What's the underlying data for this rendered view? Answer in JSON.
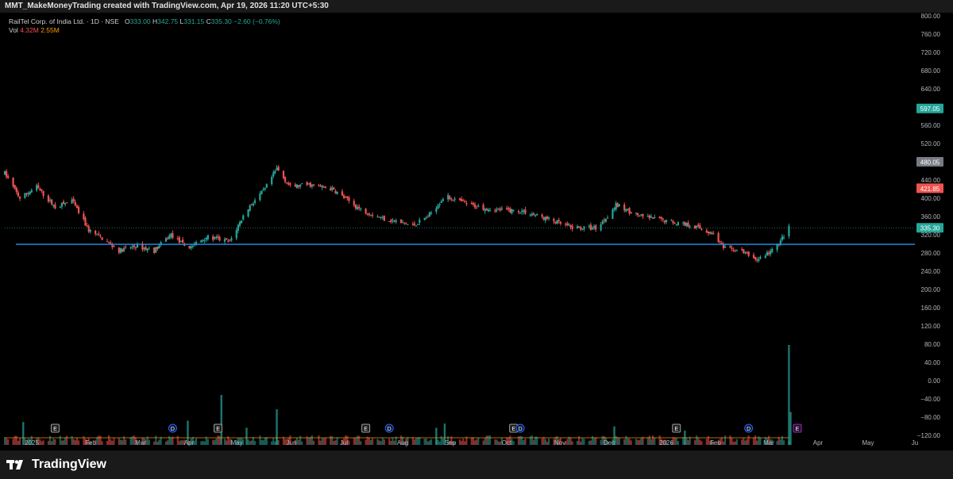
{
  "header": {
    "created_by": "MMT_MakeMoneyTrading created with TradingView.com, Apr 19, 2026 11:20 UTC+5:30"
  },
  "legend": {
    "symbol": "RailTel Corp. of India Ltd. · 1D · NSE",
    "open_label": "O",
    "open": "333.00",
    "high_label": "H",
    "high": "342.75",
    "low_label": "L",
    "low": "331.15",
    "close_label": "C",
    "close": "335.30",
    "change": "−2.60 (−0.76%)",
    "vol_label": "Vol",
    "vol": "4.32M",
    "vol_ma": "2.55M"
  },
  "brand": {
    "name": "TradingView"
  },
  "colors": {
    "up": "#26a69a",
    "down": "#ef5350",
    "hline": "#2196f3",
    "price_badge": "#26a69a",
    "badge_480": "#787b86",
    "badge_421": "#ef5350",
    "volume_ma": "#ff9800",
    "event_dividend": "#2962ff",
    "event_earnings": "#9c27b0"
  },
  "chart_data": {
    "type": "candlestick",
    "title": "",
    "y_axis": {
      "ticks": [
        "800.00",
        "760.00",
        "720.00",
        "680.00",
        "640.00",
        "600.00",
        "560.00",
        "520.00",
        "480.00",
        "440.00",
        "400.00",
        "360.00",
        "320.00",
        "280.00",
        "240.00",
        "200.00",
        "160.00",
        "120.00",
        "80.00",
        "40.00",
        "0.00",
        "−40.00",
        "−80.00",
        "−120.00"
      ],
      "range": [
        -120,
        800
      ]
    },
    "x_axis": {
      "labels": [
        "2025",
        "Feb",
        "Mar",
        "Apr",
        "May",
        "Jun",
        "Jul",
        "Aug",
        "Sep",
        "Oct",
        "Nov",
        "Dec",
        "2026",
        "Feb",
        "Mar",
        "Apr",
        "May",
        "Ju"
      ]
    },
    "price_path": [
      {
        "date": "2025-01-01",
        "close": 455
      },
      {
        "date": "2025-01-10",
        "close": 400
      },
      {
        "date": "2025-01-20",
        "close": 425
      },
      {
        "date": "2025-01-31",
        "close": 380
      },
      {
        "date": "2025-02-10",
        "close": 395
      },
      {
        "date": "2025-02-20",
        "close": 330
      },
      {
        "date": "2025-03-01",
        "close": 310
      },
      {
        "date": "2025-03-10",
        "close": 285
      },
      {
        "date": "2025-03-20",
        "close": 295
      },
      {
        "date": "2025-03-31",
        "close": 285
      },
      {
        "date": "2025-04-10",
        "close": 320
      },
      {
        "date": "2025-04-20",
        "close": 290
      },
      {
        "date": "2025-05-01",
        "close": 315
      },
      {
        "date": "2025-05-15",
        "close": 305
      },
      {
        "date": "2025-05-25",
        "close": 375
      },
      {
        "date": "2025-06-05",
        "close": 420
      },
      {
        "date": "2025-06-12",
        "close": 465
      },
      {
        "date": "2025-06-20",
        "close": 425
      },
      {
        "date": "2025-07-01",
        "close": 430
      },
      {
        "date": "2025-07-15",
        "close": 420
      },
      {
        "date": "2025-08-01",
        "close": 375
      },
      {
        "date": "2025-08-15",
        "close": 355
      },
      {
        "date": "2025-09-01",
        "close": 340
      },
      {
        "date": "2025-09-10",
        "close": 360
      },
      {
        "date": "2025-09-20",
        "close": 405
      },
      {
        "date": "2025-10-05",
        "close": 385
      },
      {
        "date": "2025-10-20",
        "close": 375
      },
      {
        "date": "2025-11-05",
        "close": 372
      },
      {
        "date": "2025-11-20",
        "close": 355
      },
      {
        "date": "2025-12-05",
        "close": 335
      },
      {
        "date": "2025-12-20",
        "close": 335
      },
      {
        "date": "2025-12-31",
        "close": 385
      },
      {
        "date": "2026-01-15",
        "close": 360
      },
      {
        "date": "2026-01-31",
        "close": 350
      },
      {
        "date": "2026-02-15",
        "close": 340
      },
      {
        "date": "2026-02-28",
        "close": 320
      },
      {
        "date": "2026-03-05",
        "close": 290
      },
      {
        "date": "2026-03-15",
        "close": 285
      },
      {
        "date": "2026-03-25",
        "close": 265
      },
      {
        "date": "2026-04-05",
        "close": 290
      },
      {
        "date": "2026-04-13",
        "close": 335.3
      }
    ],
    "horizontal_line": {
      "value": 299,
      "color": "#2196f3"
    },
    "current_price": {
      "value": 335.3,
      "label": "335.30"
    },
    "price_labels": [
      {
        "value": 597.05,
        "label": "597.05",
        "color": "#26a69a"
      },
      {
        "value": 480.05,
        "label": "480.05",
        "color": "#787b86"
      },
      {
        "value": 421.85,
        "label": "421.85",
        "color": "#ef5350"
      },
      {
        "value": 335.3,
        "label": "335.30",
        "color": "#26a69a"
      }
    ],
    "volume": {
      "average": "2.55M",
      "last": "4.32M",
      "spikes": [
        {
          "date": "2025-01-12",
          "vol": 1.6
        },
        {
          "date": "2025-04-20",
          "vol": 1.7
        },
        {
          "date": "2025-05-10",
          "vol": 3.5
        },
        {
          "date": "2025-05-25",
          "vol": 1.2
        },
        {
          "date": "2025-06-12",
          "vol": 2.5
        },
        {
          "date": "2025-09-15",
          "vol": 1.2
        },
        {
          "date": "2025-09-20",
          "vol": 1.5
        },
        {
          "date": "2025-12-30",
          "vol": 1.3
        },
        {
          "date": "2026-02-10",
          "vol": 1.0
        },
        {
          "date": "2026-04-13",
          "vol": 7.0
        },
        {
          "date": "2026-04-14",
          "vol": 2.3
        }
      ]
    },
    "events": [
      {
        "date": "2025-01-31",
        "type": "E"
      },
      {
        "date": "2025-04-11",
        "type": "D"
      },
      {
        "date": "2025-05-08",
        "type": "E"
      },
      {
        "date": "2025-08-04",
        "type": "E"
      },
      {
        "date": "2025-08-18",
        "type": "D"
      },
      {
        "date": "2025-10-31",
        "type": "E"
      },
      {
        "date": "2025-11-04",
        "type": "D"
      },
      {
        "date": "2026-02-05",
        "type": "E"
      },
      {
        "date": "2026-03-20",
        "type": "D"
      },
      {
        "date": "2026-04-18",
        "type": "E"
      }
    ]
  }
}
